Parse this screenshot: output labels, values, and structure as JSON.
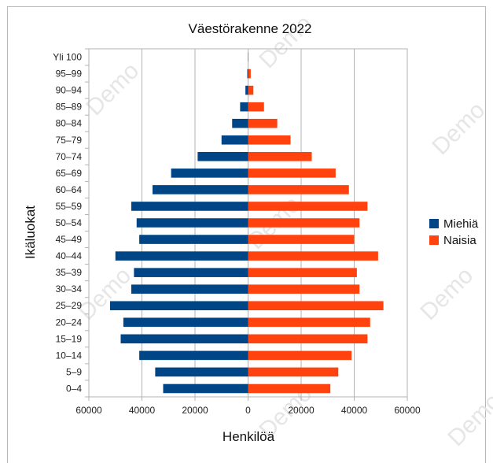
{
  "chart_data": {
    "type": "bar",
    "orientation": "horizontal",
    "title": "Väestörakenne 2022",
    "xlabel": "Henkilöä",
    "ylabel": "Ikäluokat",
    "watermark": "Demo",
    "categories": [
      "0–4",
      "5–9",
      "10–14",
      "15–19",
      "20–24",
      "25–29",
      "30–34",
      "35–39",
      "40–44",
      "45–49",
      "50–54",
      "55–59",
      "60–64",
      "65–69",
      "70–74",
      "75–79",
      "80–84",
      "85–89",
      "90–94",
      "95–99",
      "Yli 100"
    ],
    "series": [
      {
        "name": "Miehiä",
        "color": "#004586",
        "values": [
          32000,
          35000,
          41000,
          48000,
          47000,
          52000,
          44000,
          43000,
          50000,
          41000,
          42000,
          44000,
          36000,
          29000,
          19000,
          10000,
          6000,
          3000,
          1000,
          300,
          50
        ]
      },
      {
        "name": "Naisia",
        "color": "#ff420e",
        "values": [
          31000,
          34000,
          39000,
          45000,
          46000,
          51000,
          42000,
          41000,
          49000,
          40000,
          42000,
          45000,
          38000,
          33000,
          24000,
          16000,
          11000,
          6000,
          2000,
          1000,
          100
        ]
      }
    ],
    "xlim": [
      -60000,
      60000
    ],
    "xticks": [
      -60000,
      -40000,
      -20000,
      0,
      20000,
      40000,
      60000
    ],
    "xtick_labels": [
      "60000",
      "40000",
      "20000",
      "0",
      "20000",
      "40000",
      "60000"
    ],
    "grid": true,
    "legend_position": "right"
  }
}
